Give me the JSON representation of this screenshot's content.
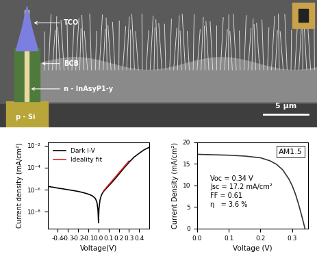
{
  "image_panel": {
    "labels": [
      "TCO",
      "BCB",
      "n - InAsyP1-y",
      "p - Si"
    ],
    "scale_bar": "5 μm"
  },
  "chart_data": [
    {
      "type": "line",
      "log": "y",
      "xlabel": "Voltage(V)",
      "ylabel": "Current density (mA/cm²)",
      "xlim": [
        -0.5,
        0.5
      ],
      "ylim": [
        3e-10,
        0.02
      ],
      "xticks": [
        -0.4,
        -0.3,
        -0.2,
        -0.1,
        0.0,
        0.1,
        0.2,
        0.3,
        0.4
      ],
      "yticks": [
        {
          "value": 1e-08,
          "label": "10⁻⁸"
        },
        {
          "value": 1e-06,
          "label": "10⁻⁶"
        },
        {
          "value": 0.0001,
          "label": "10⁻⁴"
        },
        {
          "value": 0.01,
          "label": "10⁻²"
        }
      ],
      "legend": "upper left",
      "grid": false,
      "series": [
        {
          "name": "Dark I-V",
          "color": "#000000",
          "line_style": "solid",
          "x": [
            -0.5,
            -0.45,
            -0.4,
            -0.35,
            -0.3,
            -0.25,
            -0.2,
            -0.15,
            -0.1,
            -0.06,
            -0.03,
            -0.015,
            -0.005,
            0.0,
            0.005,
            0.015,
            0.03,
            0.05,
            0.1,
            0.15,
            0.2,
            0.25,
            0.3,
            0.35,
            0.4,
            0.45,
            0.5
          ],
          "values": [
            2e-06,
            1.7e-06,
            1.4e-06,
            1.2e-06,
            1e-06,
            8.5e-07,
            7e-07,
            5.5e-07,
            4e-07,
            2.8e-07,
            1.6e-07,
            7e-08,
            1.5e-08,
            1e-09,
            2e-08,
            1.2e-07,
            3.5e-07,
            7e-07,
            2.2e-06,
            7e-06,
            2.5e-05,
            9e-05,
            0.0003,
            0.0009,
            0.002,
            0.0042,
            0.007
          ]
        },
        {
          "name": "Ideality fit",
          "color": "#e02020",
          "line_style": "solid",
          "x": [
            0.05,
            0.3
          ],
          "values": [
            8e-07,
            0.0004
          ]
        }
      ]
    },
    {
      "type": "line",
      "xlabel": "Voltage (V)",
      "ylabel": "Current Density (mA/cm²)",
      "xlim": [
        0.0,
        0.35
      ],
      "ylim": [
        0,
        20
      ],
      "xticks": [
        0.0,
        0.1,
        0.2,
        0.3
      ],
      "yticks": [
        0,
        5,
        10,
        15,
        20
      ],
      "grid": false,
      "annotations": [
        "AM1.5",
        "Voc = 0.34 V",
        "Jsc = 17.2 mA/cm²",
        "FF = 0.61",
        "η   = 3.6 %"
      ],
      "series": [
        {
          "color": "#333333",
          "line_style": "solid",
          "x": [
            0.0,
            0.05,
            0.1,
            0.15,
            0.2,
            0.23,
            0.25,
            0.27,
            0.29,
            0.3,
            0.31,
            0.32,
            0.33,
            0.34
          ],
          "values": [
            17.2,
            17.1,
            17.0,
            16.8,
            16.4,
            15.7,
            14.9,
            13.6,
            11.4,
            9.9,
            8.0,
            5.6,
            2.9,
            0.0
          ]
        }
      ]
    }
  ]
}
